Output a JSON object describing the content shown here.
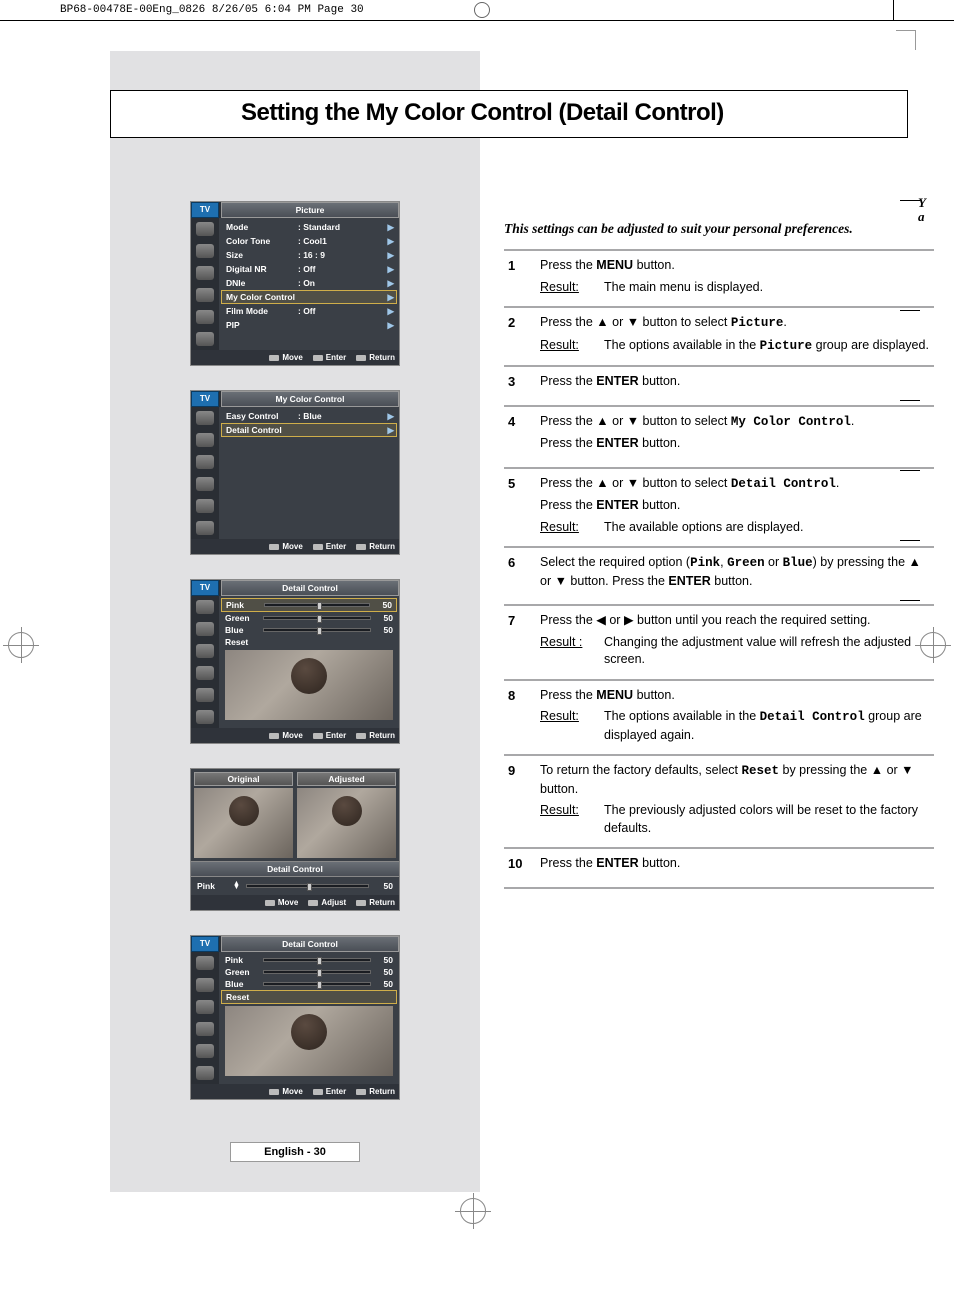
{
  "slug": "BP68-00478E-00Eng_0826  8/26/05  6:04 PM  Page 30",
  "title": "Setting the My Color Control (Detail Control)",
  "intro": "This settings can be adjusted to suit your personal preferences.",
  "pageLabel": "English - 30",
  "cutoff": {
    "l1": "Y",
    "l2": "a"
  },
  "glyph": {
    "up": "▲",
    "down": "▼",
    "left": "◀",
    "right": "▶",
    "tri": "▶"
  },
  "foot": {
    "move": "Move",
    "enter": "Enter",
    "ret": "Return",
    "adjust": "Adjust"
  },
  "menu1": {
    "tab": "TV",
    "title": "Picture",
    "rows": [
      {
        "k": "Mode",
        "v": ": Standard"
      },
      {
        "k": "Color Tone",
        "v": ": Cool1"
      },
      {
        "k": "Size",
        "v": ": 16 : 9"
      },
      {
        "k": "Digital NR",
        "v": ": Off"
      },
      {
        "k": "DNIe",
        "v": ": On"
      },
      {
        "k": "My Color Control",
        "v": "",
        "sel": true
      },
      {
        "k": "Film Mode",
        "v": ": Off"
      },
      {
        "k": "PIP",
        "v": ""
      }
    ]
  },
  "menu2": {
    "tab": "TV",
    "title": "My Color Control",
    "rows": [
      {
        "k": "Easy Control",
        "v": ": Blue"
      },
      {
        "k": "Detail Control",
        "v": "",
        "sel": true
      }
    ]
  },
  "menu3": {
    "tab": "TV",
    "title": "Detail Control",
    "sliders": [
      {
        "k": "Pink",
        "v": 50,
        "sel": true
      },
      {
        "k": "Green",
        "v": 50
      },
      {
        "k": "Blue",
        "v": 50
      },
      {
        "k": "Reset"
      }
    ]
  },
  "compare": {
    "orig": "Original",
    "adj": "Adjusted",
    "title": "Detail Control",
    "slider": {
      "k": "Pink",
      "v": 50
    }
  },
  "menu5": {
    "tab": "TV",
    "title": "Detail Control",
    "sliders": [
      {
        "k": "Pink",
        "v": 50
      },
      {
        "k": "Green",
        "v": 50
      },
      {
        "k": "Blue",
        "v": 50
      },
      {
        "k": "Reset",
        "sel": true
      }
    ]
  },
  "steps": [
    {
      "n": "1",
      "lines": [
        {
          "html": "Press the <span class='b'>MENU</span> button."
        }
      ],
      "resultLabel": "Result:",
      "result": "The main menu is displayed."
    },
    {
      "n": "2",
      "lines": [
        {
          "html": "Press the ▲ or ▼ button to select <span class='mono'>Picture</span>."
        }
      ],
      "resultLabel": "Result:",
      "result": "The options available in the <span class='mono'>Picture</span> group are displayed."
    },
    {
      "n": "3",
      "lines": [
        {
          "html": "Press the <span class='b'>ENTER</span> button."
        }
      ]
    },
    {
      "n": "4",
      "lines": [
        {
          "html": "Press the ▲ or ▼ button to select <span class='mono'>My Color Control</span>."
        },
        {
          "html": "Press the <span class='b'>ENTER</span> button."
        }
      ]
    },
    {
      "n": "5",
      "lines": [
        {
          "html": "Press the ▲ or ▼ button to select <span class='mono'>Detail Control</span>."
        },
        {
          "html": "Press the <span class='b'>ENTER</span> button."
        }
      ],
      "resultLabel": "Result:",
      "result": "The available options are displayed."
    },
    {
      "n": "6",
      "lines": [
        {
          "html": "Select the required option (<span class='mono'>Pink</span>, <span class='mono'>Green</span> or <span class='mono'>Blue</span>) by pressing the ▲ or ▼ button. Press the <span class='b'>ENTER</span> button."
        }
      ]
    },
    {
      "n": "7",
      "lines": [
        {
          "html": "Press the ◀ or ▶ button until you reach the required setting."
        }
      ],
      "resultLabel": "Result :",
      "result": "Changing the adjustment value will refresh the adjusted screen."
    },
    {
      "n": "8",
      "lines": [
        {
          "html": "Press the <span class='b'>MENU</span> button."
        }
      ],
      "resultLabel": "Result:",
      "result": "The options available in the <span class='mono'>Detail Control</span> group are displayed again."
    },
    {
      "n": "9",
      "lines": [
        {
          "html": "To return the factory defaults, select <span class='mono'>Reset</span> by pressing the ▲ or ▼ button."
        }
      ],
      "resultLabel": "Result:",
      "result": "The previously adjusted colors will be reset to the factory defaults."
    },
    {
      "n": "10",
      "lines": [
        {
          "html": "Press the <span class='b'>ENTER</span> button."
        }
      ]
    }
  ]
}
